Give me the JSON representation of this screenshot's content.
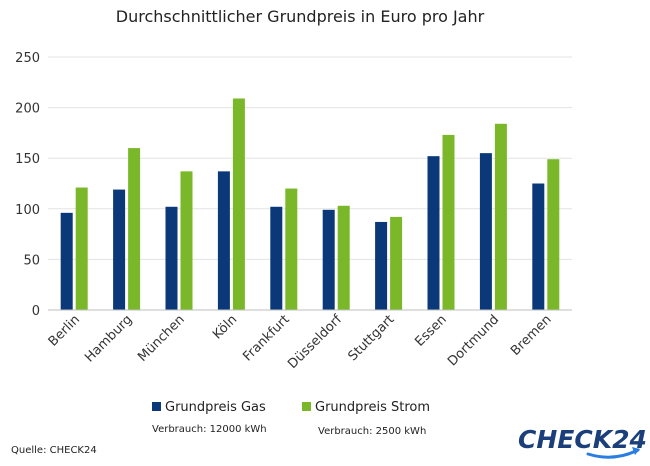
{
  "chart_data": {
    "type": "bar",
    "title": "Durchschnittlicher Grundpreis in Euro pro Jahr",
    "categories": [
      "Berlin",
      "Hamburg",
      "München",
      "Köln",
      "Frankfurt",
      "Düsseldorf",
      "Stuttgart",
      "Essen",
      "Dortmund",
      "Bremen"
    ],
    "series": [
      {
        "name": "Grundpreis Gas",
        "note": "Verbrauch: 12000 kWh",
        "color": "#0b3878",
        "values": [
          96,
          119,
          102,
          137,
          102,
          99,
          87,
          152,
          155,
          125
        ]
      },
      {
        "name": "Grundpreis Strom",
        "note": "Verbrauch: 2500 kWh",
        "color": "#7ab829",
        "values": [
          121,
          160,
          137,
          209,
          120,
          103,
          92,
          173,
          184,
          149
        ]
      }
    ],
    "ylim": [
      0,
      250
    ],
    "yticks": [
      0,
      50,
      100,
      150,
      200,
      250
    ],
    "grid": true,
    "legend": "bottom"
  },
  "footer": {
    "source": "Quelle: CHECK24"
  },
  "logo": {
    "text": "CHECK24",
    "color": "#1a3f7a",
    "accent": "#2a7de1",
    "icon": "check24-logo"
  }
}
